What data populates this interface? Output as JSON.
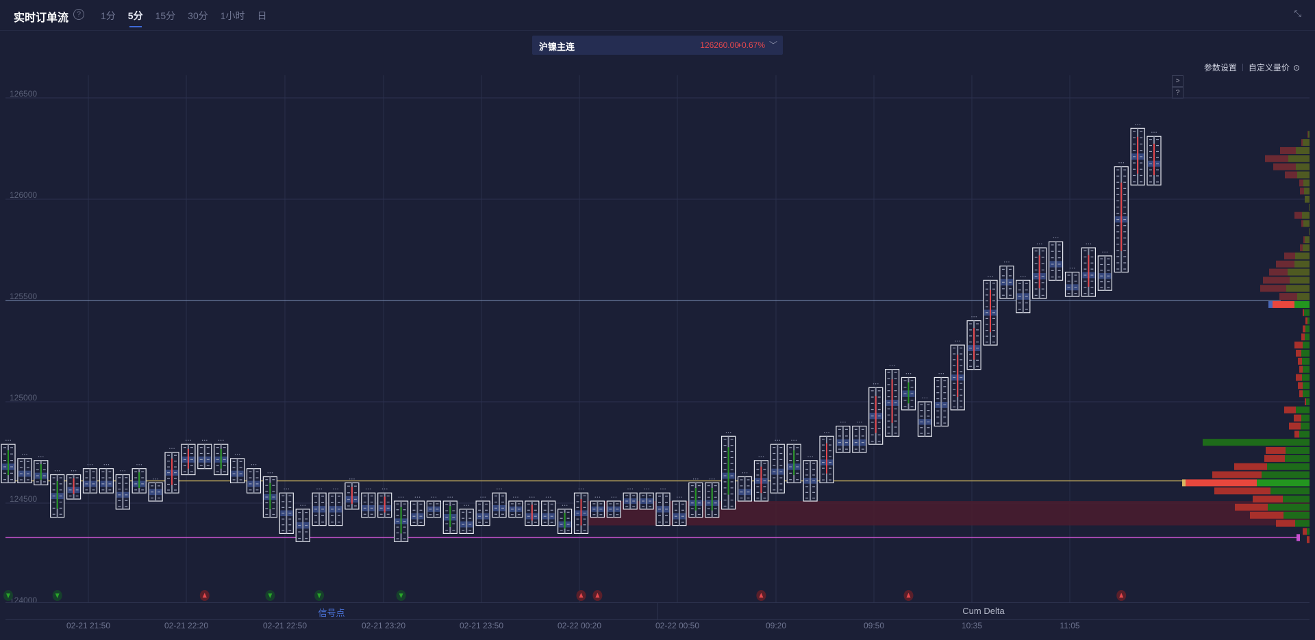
{
  "header": {
    "title": "实时订单流",
    "tabs": [
      {
        "label": "1分"
      },
      {
        "label": "5分",
        "active": true
      },
      {
        "label": "15分"
      },
      {
        "label": "30分"
      },
      {
        "label": "1小时"
      },
      {
        "label": "日"
      }
    ],
    "help_icon": "question-circle-icon",
    "collapse_icon": "collapse-arrows-icon"
  },
  "symbol": {
    "name": "沪镍主连",
    "price": "126260.00",
    "change": "+0.67%",
    "dropdown_icon": "chevron-down-icon"
  },
  "toolbar": {
    "params": "参数设置",
    "custom_volume": "自定义量价",
    "custom_icon": "circle-dot-icon",
    "expand": ">",
    "help": "?"
  },
  "colors": {
    "background": "#1b1f36",
    "up": "#e5484d",
    "down": "#23961f",
    "poc": "#4a68b8",
    "line_current": "#7e90b8",
    "line_yellow": "#b8a35a",
    "line_magenta": "#b84fc0",
    "zone": "#4a1c2e"
  },
  "chart_data": {
    "type": "footprint",
    "yaxis": {
      "ticks": [
        126500,
        126000,
        125500,
        125000,
        124500,
        124000
      ]
    },
    "xaxis": {
      "ticks": [
        "02-21 21:50",
        "02-21 22:20",
        "02-21 22:50",
        "02-21 23:20",
        "02-21 23:50",
        "02-22 00:20",
        "02-22 00:50",
        "09:20",
        "09:50",
        "10:35",
        "11:05"
      ]
    },
    "candles": [
      [
        124790,
        124600,
        "up"
      ],
      [
        124720,
        124600,
        "flat"
      ],
      [
        124710,
        124590,
        "up"
      ],
      [
        124640,
        124430,
        "up"
      ],
      [
        124640,
        124520,
        "down"
      ],
      [
        124670,
        124550,
        "flat"
      ],
      [
        124670,
        124550,
        "flat"
      ],
      [
        124640,
        124470,
        "flat"
      ],
      [
        124670,
        124550,
        "up"
      ],
      [
        124600,
        124510,
        "flat"
      ],
      [
        124750,
        124550,
        "down"
      ],
      [
        124790,
        124640,
        "down"
      ],
      [
        124790,
        124670,
        "flat"
      ],
      [
        124790,
        124640,
        "up"
      ],
      [
        124720,
        124600,
        "flat"
      ],
      [
        124670,
        124550,
        "flat"
      ],
      [
        124630,
        124430,
        "up"
      ],
      [
        124550,
        124350,
        "flat"
      ],
      [
        124470,
        124310,
        "flat"
      ],
      [
        124550,
        124390,
        "flat"
      ],
      [
        124550,
        124390,
        "flat"
      ],
      [
        124600,
        124470,
        "down"
      ],
      [
        124550,
        124430,
        "flat"
      ],
      [
        124550,
        124430,
        "down"
      ],
      [
        124510,
        124310,
        "up"
      ],
      [
        124510,
        124390,
        "flat"
      ],
      [
        124510,
        124430,
        "flat"
      ],
      [
        124510,
        124350,
        "up"
      ],
      [
        124470,
        124350,
        "flat"
      ],
      [
        124510,
        124390,
        "flat"
      ],
      [
        124550,
        124430,
        "flat"
      ],
      [
        124510,
        124430,
        "flat"
      ],
      [
        124510,
        124390,
        "down"
      ],
      [
        124510,
        124390,
        "flat"
      ],
      [
        124470,
        124350,
        "up"
      ],
      [
        124550,
        124350,
        "down"
      ],
      [
        124510,
        124430,
        "flat"
      ],
      [
        124510,
        124430,
        "flat"
      ],
      [
        124550,
        124470,
        "flat"
      ],
      [
        124550,
        124470,
        "flat"
      ],
      [
        124550,
        124390,
        "flat"
      ],
      [
        124510,
        124390,
        "flat"
      ],
      [
        124600,
        124430,
        "up"
      ],
      [
        124600,
        124430,
        "up"
      ],
      [
        124830,
        124470,
        "up"
      ],
      [
        124630,
        124510,
        "flat"
      ],
      [
        124710,
        124510,
        "down"
      ],
      [
        124790,
        124550,
        "flat"
      ],
      [
        124790,
        124600,
        "up"
      ],
      [
        124710,
        124510,
        "flat"
      ],
      [
        124830,
        124600,
        "down"
      ],
      [
        124880,
        124750,
        "flat"
      ],
      [
        124880,
        124750,
        "flat"
      ],
      [
        125070,
        124790,
        "down"
      ],
      [
        125160,
        124830,
        "down"
      ],
      [
        125120,
        124960,
        "up"
      ],
      [
        125000,
        124830,
        "flat"
      ],
      [
        125120,
        124880,
        "flat"
      ],
      [
        125280,
        124960,
        "down"
      ],
      [
        125400,
        125160,
        "down"
      ],
      [
        125600,
        125280,
        "down"
      ],
      [
        125670,
        125510,
        "flat"
      ],
      [
        125600,
        125440,
        "flat"
      ],
      [
        125760,
        125510,
        "down"
      ],
      [
        125790,
        125600,
        "flat"
      ],
      [
        125640,
        125520,
        "flat"
      ],
      [
        125760,
        125520,
        "down"
      ],
      [
        125720,
        125550,
        "flat"
      ],
      [
        126160,
        125640,
        "down"
      ],
      [
        126350,
        126070,
        "down"
      ],
      [
        126310,
        126070,
        "down"
      ]
    ],
    "levels": {
      "current": 125500,
      "yellow": 124610,
      "magenta": 124330,
      "zone": [
        124390,
        124510
      ]
    },
    "volume_profile": [
      [
        126320,
        1,
        2
      ],
      [
        126280,
        2,
        10
      ],
      [
        126240,
        23,
        20
      ],
      [
        126200,
        34,
        31
      ],
      [
        126160,
        33,
        20
      ],
      [
        126120,
        18,
        18
      ],
      [
        126080,
        6,
        9
      ],
      [
        126040,
        6,
        8
      ],
      [
        126000,
        0,
        7
      ],
      [
        125960,
        0,
        1
      ],
      [
        125920,
        11,
        11
      ],
      [
        125880,
        3,
        9
      ],
      [
        125840,
        0,
        1
      ],
      [
        125800,
        2,
        7
      ],
      [
        125760,
        4,
        10
      ],
      [
        125720,
        16,
        21
      ],
      [
        125680,
        27,
        22
      ],
      [
        125640,
        27,
        32
      ],
      [
        125600,
        39,
        29
      ],
      [
        125560,
        38,
        34
      ],
      [
        125520,
        26,
        18
      ],
      [
        125480,
        32,
        22
      ],
      [
        125440,
        2,
        8
      ],
      [
        125400,
        3,
        3
      ],
      [
        125360,
        4,
        6
      ],
      [
        125320,
        5,
        7
      ],
      [
        125280,
        12,
        10
      ],
      [
        125240,
        8,
        12
      ],
      [
        125200,
        6,
        11
      ],
      [
        125160,
        5,
        10
      ],
      [
        125120,
        9,
        11
      ],
      [
        125080,
        7,
        10
      ],
      [
        125040,
        5,
        10
      ],
      [
        125000,
        2,
        5
      ],
      [
        124960,
        17,
        20
      ],
      [
        124920,
        11,
        12
      ],
      [
        124880,
        17,
        13
      ],
      [
        124840,
        7,
        15
      ],
      [
        124800,
        0,
        156
      ],
      [
        124760,
        29,
        35
      ],
      [
        124720,
        30,
        36
      ],
      [
        124680,
        48,
        62
      ],
      [
        124640,
        72,
        70
      ],
      [
        124600,
        104,
        77
      ],
      [
        124560,
        82,
        57
      ],
      [
        124520,
        44,
        39
      ],
      [
        124480,
        48,
        61
      ],
      [
        124440,
        49,
        38
      ],
      [
        124400,
        28,
        21
      ],
      [
        124360,
        6,
        4
      ],
      [
        124320,
        4,
        0
      ]
    ],
    "signals": [
      [
        0,
        "sell"
      ],
      [
        3,
        "sell"
      ],
      [
        12,
        "buy"
      ],
      [
        16,
        "sell"
      ],
      [
        19,
        "sell"
      ],
      [
        24,
        "sell"
      ],
      [
        35,
        "buy-alt"
      ],
      [
        36,
        "buy"
      ],
      [
        46,
        "buy"
      ],
      [
        55,
        "buy"
      ],
      [
        68,
        "buy-alt"
      ]
    ]
  },
  "bottom": {
    "tabs": [
      {
        "label": "信号点",
        "active": true
      },
      {
        "label": "Cum Delta"
      }
    ]
  }
}
